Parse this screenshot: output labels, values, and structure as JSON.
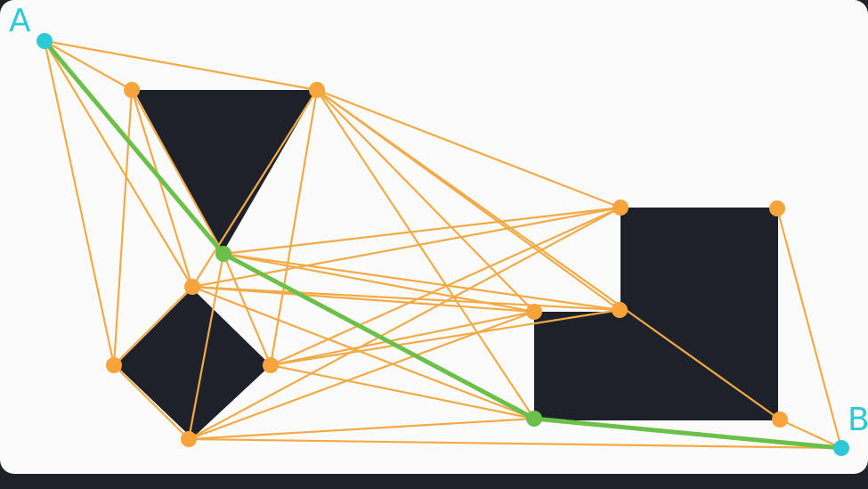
{
  "labels": {
    "start": "A",
    "end": "B"
  },
  "colors": {
    "background": "#1f2128",
    "panel": "#fbfbfb",
    "obstacle": "#1f212a",
    "edge": "#f3aa45",
    "vertex": "#f7a43c",
    "path": "#6cc04a",
    "endpoint": "#2ec9d6"
  },
  "graph": {
    "edges": [
      [
        "A",
        "T1"
      ],
      [
        "A",
        "T2"
      ],
      [
        "A",
        "T3"
      ],
      [
        "A",
        "DT"
      ],
      [
        "A",
        "DL"
      ],
      [
        "T1",
        "T3"
      ],
      [
        "T1",
        "DT"
      ],
      [
        "T1",
        "DL"
      ],
      [
        "T2",
        "R1"
      ],
      [
        "T2",
        "R4"
      ],
      [
        "T2",
        "R5"
      ],
      [
        "T2",
        "R6"
      ],
      [
        "T2",
        "R3"
      ],
      [
        "T2",
        "DT"
      ],
      [
        "T2",
        "DR"
      ],
      [
        "T3",
        "R1"
      ],
      [
        "T3",
        "R4"
      ],
      [
        "T3",
        "R5"
      ],
      [
        "T3",
        "R6"
      ],
      [
        "T3",
        "DB"
      ],
      [
        "T3",
        "DR"
      ],
      [
        "DT",
        "R1"
      ],
      [
        "DT",
        "R4"
      ],
      [
        "DT",
        "R5"
      ],
      [
        "DT",
        "R6"
      ],
      [
        "DR",
        "R1"
      ],
      [
        "DR",
        "R4"
      ],
      [
        "DR",
        "R5"
      ],
      [
        "DR",
        "R6"
      ],
      [
        "DB",
        "R1"
      ],
      [
        "DB",
        "R4"
      ],
      [
        "DB",
        "R6"
      ],
      [
        "DB",
        "B"
      ],
      [
        "DL",
        "DT"
      ],
      [
        "DL",
        "DB"
      ],
      [
        "R2",
        "B"
      ],
      [
        "R3",
        "B"
      ],
      [
        "R6",
        "B"
      ]
    ],
    "path": [
      "A",
      "T3",
      "R6",
      "B"
    ]
  }
}
